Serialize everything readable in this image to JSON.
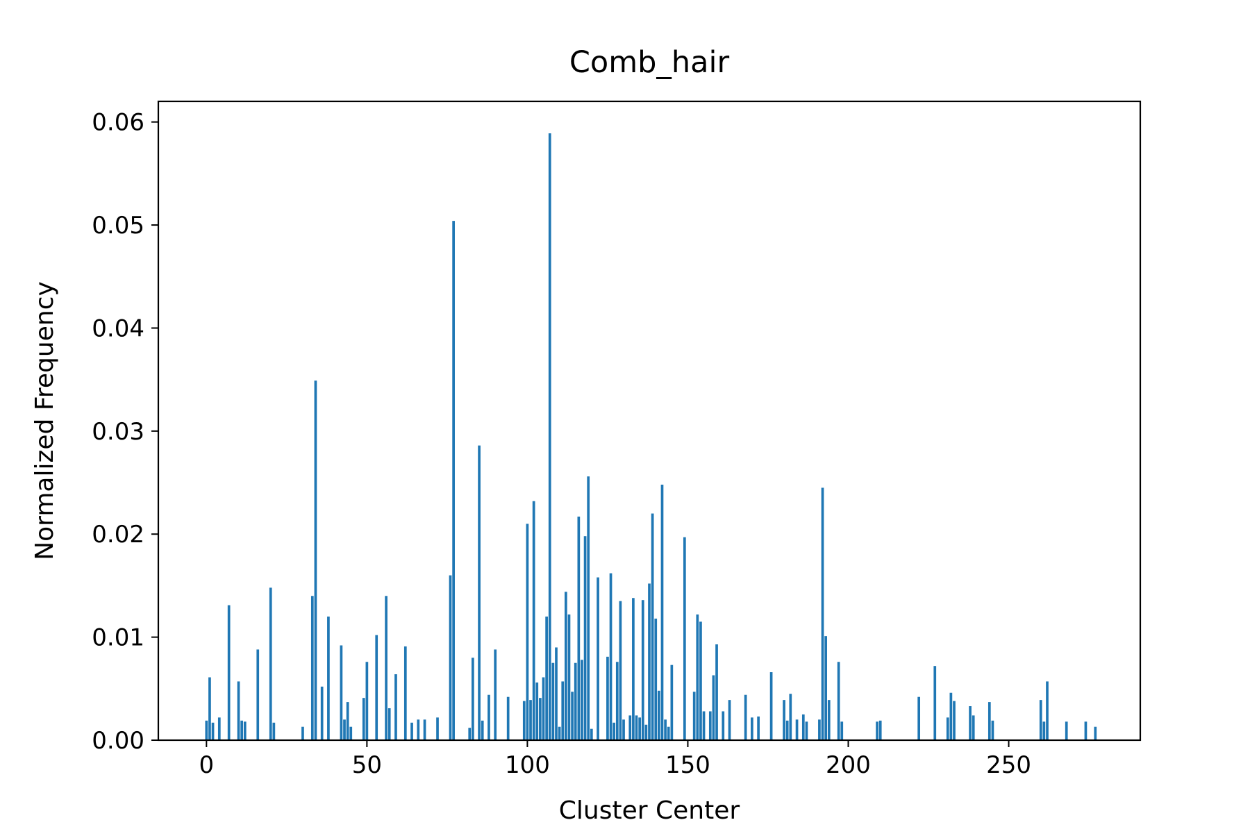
{
  "chart_data": {
    "type": "bar",
    "title": "Comb_hair",
    "xlabel": "Cluster Center",
    "ylabel": "Normalized Frequency",
    "xlim": [
      -15,
      291
    ],
    "ylim": [
      0.0,
      0.062
    ],
    "xticks": [
      0,
      50,
      100,
      150,
      200,
      250
    ],
    "xtick_labels": [
      "0",
      "50",
      "100",
      "150",
      "200",
      "250"
    ],
    "yticks": [
      0.0,
      0.01,
      0.02,
      0.03,
      0.04,
      0.05,
      0.06
    ],
    "ytick_labels": [
      "0.00",
      "0.01",
      "0.02",
      "0.03",
      "0.04",
      "0.05",
      "0.06"
    ],
    "grid": false,
    "legend": false,
    "bar_color": "#1f77b4",
    "series": [
      {
        "x": [
          0,
          1,
          2,
          4,
          7,
          10,
          11,
          12,
          16,
          20,
          21,
          30,
          33,
          34,
          36,
          38,
          42,
          43,
          44,
          45,
          49,
          50,
          53,
          56,
          57,
          59,
          62,
          64,
          66,
          68,
          72,
          76,
          77,
          82,
          83,
          85,
          86,
          88,
          90,
          94,
          99,
          100,
          101,
          102,
          103,
          104,
          105,
          106,
          107,
          108,
          109,
          110,
          111,
          112,
          113,
          114,
          115,
          116,
          117,
          118,
          119,
          120,
          122,
          125,
          126,
          127,
          128,
          129,
          130,
          132,
          133,
          134,
          135,
          136,
          137,
          138,
          139,
          140,
          141,
          142,
          143,
          144,
          145,
          149,
          152,
          153,
          154,
          155,
          157,
          158,
          159,
          161,
          163,
          168,
          170,
          172,
          176,
          180,
          181,
          182,
          184,
          186,
          187,
          191,
          192,
          193,
          194,
          197,
          198,
          209,
          210,
          222,
          227,
          231,
          232,
          233,
          238,
          239,
          244,
          245,
          260,
          261,
          262,
          268,
          274,
          277
        ],
        "values": [
          0.0019,
          0.0061,
          0.0017,
          0.0022,
          0.0131,
          0.0057,
          0.0019,
          0.0018,
          0.0088,
          0.0148,
          0.0017,
          0.0013,
          0.014,
          0.0349,
          0.0052,
          0.012,
          0.0092,
          0.002,
          0.0037,
          0.0013,
          0.0041,
          0.0076,
          0.0102,
          0.014,
          0.0031,
          0.0064,
          0.0091,
          0.0017,
          0.002,
          0.002,
          0.0022,
          0.016,
          0.0504,
          0.0012,
          0.008,
          0.0286,
          0.0019,
          0.0044,
          0.0088,
          0.0042,
          0.0038,
          0.021,
          0.0039,
          0.0232,
          0.0056,
          0.0041,
          0.0061,
          0.012,
          0.0589,
          0.0075,
          0.009,
          0.0013,
          0.0057,
          0.0144,
          0.0122,
          0.0047,
          0.0075,
          0.0217,
          0.0078,
          0.0198,
          0.0256,
          0.0011,
          0.0158,
          0.0081,
          0.0162,
          0.0017,
          0.0076,
          0.0135,
          0.002,
          0.0024,
          0.0138,
          0.0024,
          0.0022,
          0.0136,
          0.0015,
          0.0152,
          0.022,
          0.0118,
          0.0048,
          0.0248,
          0.002,
          0.0013,
          0.0073,
          0.0197,
          0.0047,
          0.0122,
          0.0115,
          0.0028,
          0.0028,
          0.0063,
          0.0093,
          0.0028,
          0.0039,
          0.0044,
          0.0022,
          0.0023,
          0.0066,
          0.0039,
          0.0019,
          0.0045,
          0.002,
          0.0025,
          0.0018,
          0.002,
          0.0245,
          0.0101,
          0.0039,
          0.0076,
          0.0018,
          0.0018,
          0.0019,
          0.0042,
          0.0072,
          0.0022,
          0.0046,
          0.0038,
          0.0033,
          0.0024,
          0.0037,
          0.0019,
          0.0039,
          0.0018,
          0.0057,
          0.0018,
          0.0018,
          0.0013
        ]
      }
    ]
  }
}
